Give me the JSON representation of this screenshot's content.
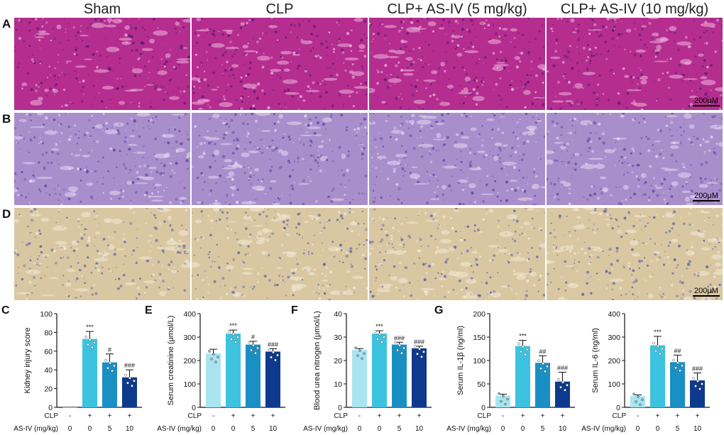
{
  "column_titles": [
    "Sham",
    "CLP",
    "CLP+ AS-IV (5 mg/kg)",
    "CLP+ AS-IV (10 mg/kg)"
  ],
  "row_labels": [
    "A",
    "B",
    "D"
  ],
  "scale_bar": "200μM",
  "stain_colors": {
    "he": "#b42d8f",
    "pas": "#a88fcc",
    "ihc": "#d9c7a2"
  },
  "bar_colors": [
    "#a9e4f0",
    "#3cc3e0",
    "#1a8fc4",
    "#0d3a8c"
  ],
  "x_rows": {
    "clp_label": "CLP",
    "clp_values": [
      "-",
      "+",
      "+",
      "+"
    ],
    "asiv_label": "AS-IV (mg/kg)",
    "asiv_values": [
      "0",
      "0",
      "5",
      "10"
    ]
  },
  "chart_data": [
    {
      "type": "bar",
      "panel": "C",
      "ylabel": "Kidney injury score",
      "ylim": [
        0,
        100
      ],
      "yticks": [
        0,
        20,
        40,
        60,
        80,
        100
      ],
      "values": [
        0,
        73,
        48,
        32
      ],
      "errors": [
        0,
        8,
        9,
        8
      ],
      "sig": [
        "",
        "***",
        "#",
        "###"
      ]
    },
    {
      "type": "bar",
      "panel": "E",
      "ylabel": "Serum creatinine (μmol/L)",
      "ylim": [
        0,
        400
      ],
      "yticks": [
        0,
        100,
        200,
        300,
        400
      ],
      "values": [
        230,
        315,
        268,
        238
      ],
      "errors": [
        18,
        15,
        14,
        12
      ],
      "sig": [
        "",
        "***",
        "#",
        "###"
      ]
    },
    {
      "type": "bar",
      "panel": "F",
      "ylabel": "Blood urea nitrogen (μmol/L)",
      "ylim": [
        0,
        40
      ],
      "yticks": [
        0,
        10,
        20,
        30,
        40
      ],
      "values": [
        24.5,
        31.5,
        26.8,
        25.2
      ],
      "errors": [
        0.6,
        1.2,
        1.0,
        0.9
      ],
      "sig": [
        "",
        "***",
        "###",
        "###"
      ]
    },
    {
      "type": "bar",
      "panel": "G",
      "ylabel": "Serum IL-1β (ng/ml)",
      "ylim": [
        0,
        200
      ],
      "yticks": [
        0,
        50,
        100,
        150,
        200
      ],
      "values": [
        25,
        131,
        95,
        55
      ],
      "errors": [
        3,
        12,
        15,
        20
      ],
      "sig": [
        "",
        "***",
        "##",
        "###"
      ]
    },
    {
      "type": "bar",
      "panel": "",
      "ylabel": "Serum IL-6 (ng/ml)",
      "ylim": [
        0,
        400
      ],
      "yticks": [
        0,
        100,
        200,
        300,
        400
      ],
      "values": [
        48,
        265,
        193,
        115
      ],
      "errors": [
        5,
        38,
        30,
        32
      ],
      "sig": [
        "",
        "***",
        "##",
        "###"
      ]
    }
  ]
}
